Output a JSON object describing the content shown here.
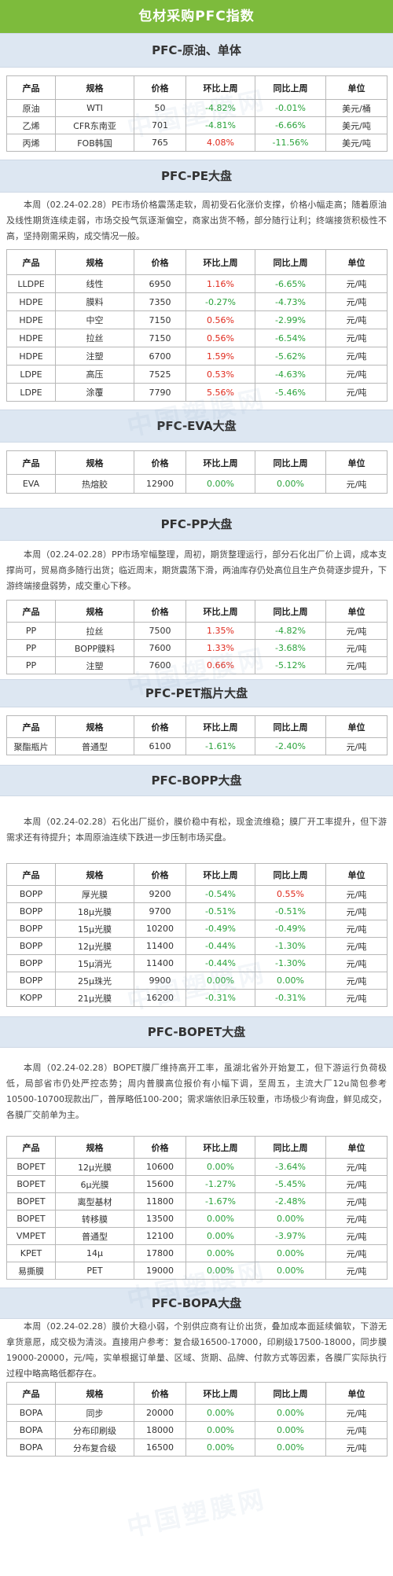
{
  "title": "包材采购PFC指数",
  "watermark": "中国塑膜网",
  "colors": {
    "header_green": "#7dbb3c",
    "section_blue": "#dde7f2",
    "up_red": "#e0291c",
    "down_green": "#2aa33b"
  },
  "sections": [
    {
      "title": "PFC-原油、单体",
      "columns": [
        "产品",
        "规格",
        "价格",
        "环比上周",
        "同比上周",
        "单位"
      ],
      "rows": [
        [
          "原油",
          "WTI",
          "50",
          "-4.82%",
          "-0.01%",
          "美元/桶"
        ],
        [
          "乙烯",
          "CFR东南亚",
          "701",
          "-4.81%",
          "-6.66%",
          "美元/吨"
        ],
        [
          "丙烯",
          "FOB韩国",
          "765",
          "4.08%",
          "-11.56%",
          "美元/吨"
        ]
      ]
    },
    {
      "title": "PFC-PE大盘",
      "description": "本周（02.24-02.28）PE市场价格震荡走软，周初受石化涨价支撑，价格小幅走高；随着原油及线性期货连续走弱，市场交投气氛逐渐偏空，商家出货不畅，部分随行让利；终端接货积极性不高，坚持刚需采购，成交情况一般。",
      "columns": [
        "产品",
        "规格",
        "价格",
        "环比上周",
        "同比上周",
        "单位"
      ],
      "rows": [
        [
          "LLDPE",
          "线性",
          "6950",
          "1.16%",
          "-6.65%",
          "元/吨"
        ],
        [
          "HDPE",
          "膜料",
          "7350",
          "-0.27%",
          "-4.73%",
          "元/吨"
        ],
        [
          "HDPE",
          "中空",
          "7150",
          "0.56%",
          "-2.99%",
          "元/吨"
        ],
        [
          "HDPE",
          "拉丝",
          "7150",
          "0.56%",
          "-6.54%",
          "元/吨"
        ],
        [
          "HDPE",
          "注塑",
          "6700",
          "1.59%",
          "-5.62%",
          "元/吨"
        ],
        [
          "LDPE",
          "高压",
          "7525",
          "0.53%",
          "-4.63%",
          "元/吨"
        ],
        [
          "LDPE",
          "涂覆",
          "7790",
          "5.56%",
          "-5.46%",
          "元/吨"
        ]
      ]
    },
    {
      "title": "PFC-EVA大盘",
      "columns": [
        "产品",
        "规格",
        "价格",
        "环比上周",
        "同比上周",
        "单位"
      ],
      "rows": [
        [
          "EVA",
          "热熔胶",
          "12900",
          "0.00%",
          "0.00%",
          "元/吨"
        ]
      ]
    },
    {
      "title": "PFC-PP大盘",
      "description": "本周（02.24-02.28）PP市场窄幅整理，周初，期货整理运行，部分石化出厂价上调，成本支撑尚可，贸易商多随行出货；临近周末，期货震荡下滑，两油库存仍处高位且生产负荷逐步提升，下游终端接盘弱势，成交重心下移。",
      "columns": [
        "产品",
        "规格",
        "价格",
        "环比上周",
        "同比上周",
        "单位"
      ],
      "rows": [
        [
          "PP",
          "拉丝",
          "7500",
          "1.35%",
          "-4.82%",
          "元/吨"
        ],
        [
          "PP",
          "BOPP膜料",
          "7600",
          "1.33%",
          "-3.68%",
          "元/吨"
        ],
        [
          "PP",
          "注塑",
          "7600",
          "0.66%",
          "-5.12%",
          "元/吨"
        ]
      ]
    },
    {
      "title": "PFC-PET瓶片大盘",
      "columns": [
        "产品",
        "规格",
        "价格",
        "环比上周",
        "同比上周",
        "单位"
      ],
      "rows": [
        [
          "聚酯瓶片",
          "普通型",
          "6100",
          "-1.61%",
          "-2.40%",
          "元/吨"
        ]
      ]
    },
    {
      "title": "PFC-BOPP大盘",
      "description": "本周（02.24-02.28）石化出厂挺价，膜价稳中有松，现金流维稳；膜厂开工率提升，但下游需求还有待提升；本周原油连续下跌进一步压制市场买盘。",
      "columns": [
        "产品",
        "规格",
        "价格",
        "环比上周",
        "同比上周",
        "单位"
      ],
      "rows": [
        [
          "BOPP",
          "厚光膜",
          "9200",
          "-0.54%",
          "0.55%",
          "元/吨"
        ],
        [
          "BOPP",
          "18μ光膜",
          "9700",
          "-0.51%",
          "-0.51%",
          "元/吨"
        ],
        [
          "BOPP",
          "15μ光膜",
          "10200",
          "-0.49%",
          "-0.49%",
          "元/吨"
        ],
        [
          "BOPP",
          "12μ光膜",
          "11400",
          "-0.44%",
          "-1.30%",
          "元/吨"
        ],
        [
          "BOPP",
          "15μ消光",
          "11400",
          "-0.44%",
          "-1.30%",
          "元/吨"
        ],
        [
          "BOPP",
          "25μ珠光",
          "9900",
          "0.00%",
          "0.00%",
          "元/吨"
        ],
        [
          "KOPP",
          "21μ光膜",
          "16200",
          "-0.31%",
          "-0.31%",
          "元/吨"
        ]
      ]
    },
    {
      "title": "PFC-BOPET大盘",
      "description": "本周（02.24-02.28）BOPET膜厂维持高开工率，虽湖北省外开始复工，但下游运行负荷极低，局部省市仍处严控态势；周内普膜高位报价有小幅下调，至周五，主流大厂12u简包参考10500-10700现款出厂，普厚略低100-200；需求端依旧承压较重，市场极少有询盘，鲜见成交，各膜厂交前单为主。",
      "columns": [
        "产品",
        "规格",
        "价格",
        "环比上周",
        "同比上周",
        "单位"
      ],
      "rows": [
        [
          "BOPET",
          "12μ光膜",
          "10600",
          "0.00%",
          "-3.64%",
          "元/吨"
        ],
        [
          "BOPET",
          "6μ光膜",
          "15600",
          "-1.27%",
          "-5.45%",
          "元/吨"
        ],
        [
          "BOPET",
          "离型基材",
          "11800",
          "-1.67%",
          "-2.48%",
          "元/吨"
        ],
        [
          "BOPET",
          "转移膜",
          "13500",
          "0.00%",
          "0.00%",
          "元/吨"
        ],
        [
          "VMPET",
          "普通型",
          "12100",
          "0.00%",
          "-3.97%",
          "元/吨"
        ],
        [
          "KPET",
          "14μ",
          "17800",
          "0.00%",
          "0.00%",
          "元/吨"
        ],
        [
          "易撕膜",
          "PET",
          "19000",
          "0.00%",
          "0.00%",
          "元/吨"
        ]
      ]
    },
    {
      "title": "PFC-BOPA大盘",
      "description": "本周（02.24-02.28）膜价大稳小弱，个别供应商有让价出货，叠加成本面延续偏软，下游无拿货意愿，成交极为清淡。直接用户参考：复合级16500-17000，印刷级17500-18000，同步膜19000-20000，元/吨，实单根据订单量、区域、货期、品牌、付款方式等因素，各膜厂实际执行过程中略高略低都存在。",
      "columns": [
        "产品",
        "规格",
        "价格",
        "环比上周",
        "同比上周",
        "单位"
      ],
      "rows": [
        [
          "BOPA",
          "同步",
          "20000",
          "0.00%",
          "0.00%",
          "元/吨"
        ],
        [
          "BOPA",
          "分布印刷级",
          "18000",
          "0.00%",
          "0.00%",
          "元/吨"
        ],
        [
          "BOPA",
          "分布复合级",
          "16500",
          "0.00%",
          "0.00%",
          "元/吨"
        ]
      ]
    }
  ]
}
